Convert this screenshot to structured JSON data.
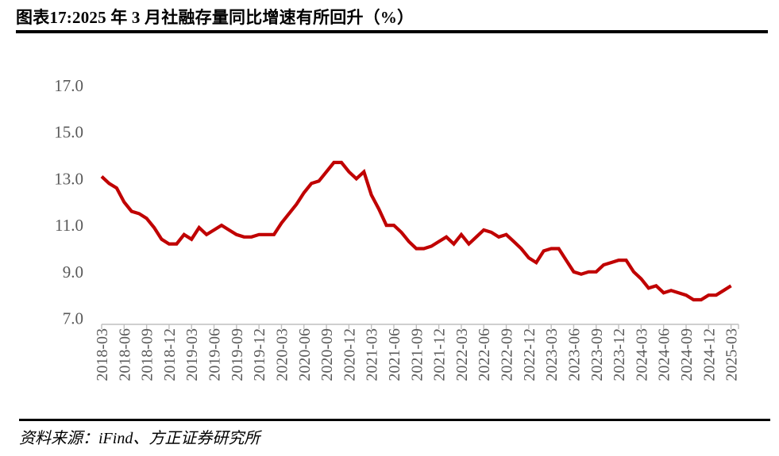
{
  "header": {
    "title": "图表17:2025 年 3 月社融存量同比增速有所回升（%）"
  },
  "footer": {
    "source": "资料来源：iFind、方正证券研究所"
  },
  "chart_data": {
    "type": "line",
    "title": "2025 年 3 月社融存量同比增速有所回升（%）",
    "unit": "%",
    "grid": false,
    "legend_position": "none",
    "xlabel": "",
    "ylabel": "",
    "ylim": [
      7.0,
      17.0
    ],
    "y_ticks": [
      7,
      9,
      11,
      13,
      15,
      17
    ],
    "y_tick_labels": [
      "7.0",
      "9.0",
      "11.0",
      "13.0",
      "15.0",
      "17.0"
    ],
    "x_tick_labels": [
      "2018-03",
      "2018-06",
      "2018-09",
      "2018-12",
      "2019-03",
      "2019-06",
      "2019-09",
      "2019-12",
      "2020-03",
      "2020-06",
      "2020-09",
      "2020-12",
      "2021-03",
      "2021-06",
      "2021-09",
      "2021-12",
      "2022-03",
      "2022-06",
      "2022-09",
      "2022-12",
      "2023-03",
      "2023-06",
      "2023-09",
      "2023-12",
      "2024-03",
      "2024-06",
      "2024-09",
      "2024-12",
      "2025-03"
    ],
    "months": [
      "2018-03",
      "2018-04",
      "2018-05",
      "2018-06",
      "2018-07",
      "2018-08",
      "2018-09",
      "2018-10",
      "2018-11",
      "2018-12",
      "2019-01",
      "2019-02",
      "2019-03",
      "2019-04",
      "2019-05",
      "2019-06",
      "2019-07",
      "2019-08",
      "2019-09",
      "2019-10",
      "2019-11",
      "2019-12",
      "2020-01",
      "2020-02",
      "2020-03",
      "2020-04",
      "2020-05",
      "2020-06",
      "2020-07",
      "2020-08",
      "2020-09",
      "2020-10",
      "2020-11",
      "2020-12",
      "2021-01",
      "2021-02",
      "2021-03",
      "2021-04",
      "2021-05",
      "2021-06",
      "2021-07",
      "2021-08",
      "2021-09",
      "2021-10",
      "2021-11",
      "2021-12",
      "2022-01",
      "2022-02",
      "2022-03",
      "2022-04",
      "2022-05",
      "2022-06",
      "2022-07",
      "2022-08",
      "2022-09",
      "2022-10",
      "2022-11",
      "2022-12",
      "2023-01",
      "2023-02",
      "2023-03",
      "2023-04",
      "2023-05",
      "2023-06",
      "2023-07",
      "2023-08",
      "2023-09",
      "2023-10",
      "2023-11",
      "2023-12",
      "2024-01",
      "2024-02",
      "2024-03",
      "2024-04",
      "2024-05",
      "2024-06",
      "2024-07",
      "2024-08",
      "2024-09",
      "2024-10",
      "2024-11",
      "2024-12",
      "2025-01",
      "2025-02",
      "2025-03"
    ],
    "series": [
      {
        "name": "社融存量同比增速",
        "color": "#c00000",
        "values": [
          13.1,
          12.8,
          12.6,
          12.0,
          11.6,
          11.5,
          11.3,
          10.9,
          10.4,
          10.2,
          10.2,
          10.6,
          10.4,
          10.9,
          10.6,
          10.8,
          11.0,
          10.8,
          10.6,
          10.5,
          10.5,
          10.6,
          10.6,
          10.6,
          11.1,
          11.5,
          11.9,
          12.4,
          12.8,
          12.9,
          13.3,
          13.7,
          13.7,
          13.3,
          13.0,
          13.3,
          12.3,
          11.7,
          11.0,
          11.0,
          10.7,
          10.3,
          10.0,
          10.0,
          10.1,
          10.3,
          10.5,
          10.2,
          10.6,
          10.2,
          10.5,
          10.8,
          10.7,
          10.5,
          10.6,
          10.3,
          10.0,
          9.6,
          9.4,
          9.9,
          10.0,
          10.0,
          9.5,
          9.0,
          8.9,
          9.0,
          9.0,
          9.3,
          9.4,
          9.5,
          9.5,
          9.0,
          8.7,
          8.3,
          8.4,
          8.1,
          8.2,
          8.1,
          8.0,
          7.8,
          7.8,
          8.0,
          8.0,
          8.2,
          8.4
        ]
      }
    ],
    "colors": {
      "line": "#c00000",
      "axis_label": "#595959",
      "axis_line": "#bfbfbf",
      "title_text": "#000000",
      "background": "#ffffff"
    }
  }
}
